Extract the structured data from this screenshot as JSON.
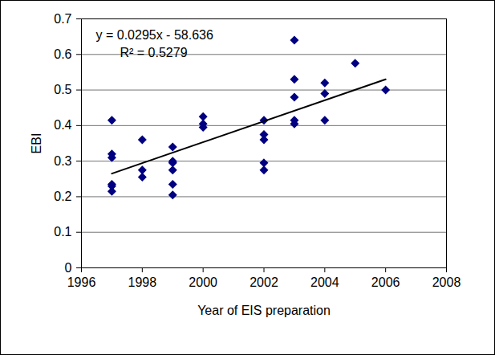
{
  "chart_data": {
    "type": "scatter",
    "xlabel": "Year of EIS preparation",
    "ylabel": "EBI",
    "xlim": [
      1996,
      2008
    ],
    "xticks": [
      1996,
      1998,
      2000,
      2002,
      2004,
      2006,
      2008
    ],
    "ylim": [
      0,
      0.7
    ],
    "yticks": [
      0,
      0.1,
      0.2,
      0.3,
      0.4,
      0.5,
      0.6,
      0.7
    ],
    "grid": true,
    "annotations": [
      "y = 0.0295x - 58.636",
      "R² = 0.5279"
    ],
    "series": [
      {
        "type": "scatter",
        "color": "#000080",
        "marker": "diamond",
        "x": [
          1997,
          1997,
          1997,
          1997,
          1997,
          1997,
          1998,
          1998,
          1998,
          1999,
          1999,
          1999,
          1999,
          1999,
          1999,
          2000,
          2000,
          2000,
          2002,
          2002,
          2002,
          2002,
          2002,
          2003,
          2003,
          2003,
          2003,
          2003,
          2004,
          2004,
          2004,
          2005,
          2006
        ],
        "values": [
          0.415,
          0.32,
          0.31,
          0.235,
          0.23,
          0.215,
          0.36,
          0.275,
          0.255,
          0.34,
          0.3,
          0.295,
          0.275,
          0.235,
          0.205,
          0.425,
          0.405,
          0.395,
          0.415,
          0.375,
          0.36,
          0.295,
          0.275,
          0.64,
          0.53,
          0.48,
          0.415,
          0.405,
          0.52,
          0.49,
          0.415,
          0.575,
          0.5
        ]
      },
      {
        "type": "line",
        "color": "#000000",
        "line_style": "solid",
        "x": [
          1997,
          2006
        ],
        "values": [
          0.265,
          0.53
        ]
      }
    ]
  }
}
